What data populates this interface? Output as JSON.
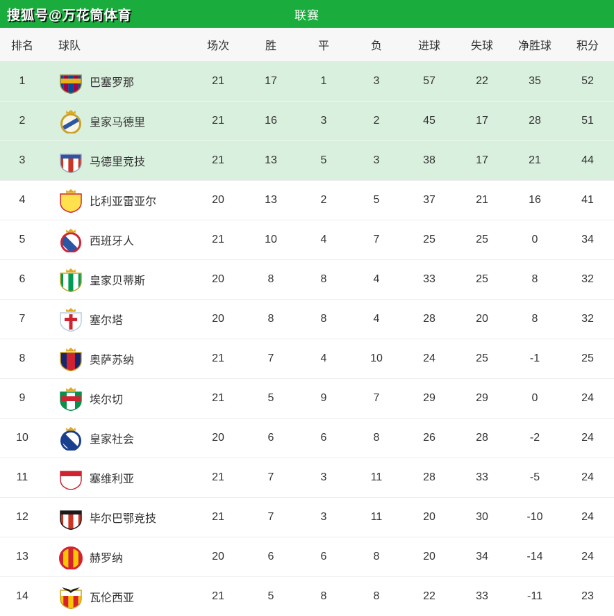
{
  "watermark": "搜狐号@万花筒体育",
  "header": {
    "title": "联赛"
  },
  "colors": {
    "topbar_green": "#1aac3d",
    "highlight_row_green": "#daf0de",
    "header_row_bg": "#f7f7f7",
    "text": "#333333"
  },
  "table": {
    "columns": [
      "排名",
      "球队",
      "场次",
      "胜",
      "平",
      "负",
      "进球",
      "失球",
      "净胜球",
      "积分"
    ],
    "rows": [
      {
        "rank": 1,
        "team": "巴塞罗那",
        "highlight": true,
        "played": 21,
        "win": 17,
        "draw": 1,
        "loss": 3,
        "gf": 57,
        "ga": 22,
        "gd": 35,
        "pts": 52,
        "logo": {
          "id": "barcelona",
          "shape": "shield",
          "stripes": [
            "#004d98",
            "#a50044",
            "#004d98",
            "#a50044",
            "#004d98"
          ],
          "band": {
            "color": "#e8b11a",
            "y": 14,
            "h": 7
          },
          "border": "#9c803e"
        }
      },
      {
        "rank": 2,
        "team": "皇家马德里",
        "highlight": true,
        "played": 21,
        "win": 16,
        "draw": 3,
        "loss": 2,
        "gf": 45,
        "ga": 17,
        "gd": 28,
        "pts": 51,
        "logo": {
          "id": "real-madrid",
          "shape": "circle",
          "fill": "#f8f4e8",
          "ring": "#c9a227",
          "sash": "#2a56a5",
          "crown": true
        }
      },
      {
        "rank": 3,
        "team": "马德里竞技",
        "highlight": true,
        "played": 21,
        "win": 13,
        "draw": 5,
        "loss": 3,
        "gf": 38,
        "ga": 17,
        "gd": 21,
        "pts": 44,
        "logo": {
          "id": "atletico-madrid",
          "shape": "shield",
          "stripes": [
            "#cb3524",
            "#ffffff",
            "#cb3524",
            "#ffffff",
            "#cb3524"
          ],
          "band": {
            "color": "#2a56a5",
            "y": 9,
            "h": 6
          },
          "border": "#9aa7bd"
        }
      },
      {
        "rank": 4,
        "team": "比利亚雷亚尔",
        "highlight": false,
        "played": 20,
        "win": 13,
        "draw": 2,
        "loss": 5,
        "gf": 37,
        "ga": 21,
        "gd": 16,
        "pts": 41,
        "logo": {
          "id": "villarreal",
          "shape": "shield",
          "fill": "#ffe14d",
          "border": "#cf2331",
          "crown": true
        }
      },
      {
        "rank": 5,
        "team": "西班牙人",
        "highlight": false,
        "played": 21,
        "win": 10,
        "draw": 4,
        "loss": 7,
        "gf": 25,
        "ga": 25,
        "gd": 0,
        "pts": 34,
        "logo": {
          "id": "espanyol",
          "shape": "circle",
          "stripes": [
            "#2a56a5",
            "#ffffff",
            "#2a56a5",
            "#ffffff"
          ],
          "diag": true,
          "ring": "#cf2331",
          "crown": true
        }
      },
      {
        "rank": 6,
        "team": "皇家贝蒂斯",
        "highlight": false,
        "played": 20,
        "win": 8,
        "draw": 8,
        "loss": 4,
        "gf": 33,
        "ga": 25,
        "gd": 8,
        "pts": 32,
        "logo": {
          "id": "real-betis",
          "shape": "shield",
          "stripes": [
            "#009c53",
            "#ffffff",
            "#009c53",
            "#ffffff",
            "#009c53"
          ],
          "border": "#c9a227",
          "crown": true
        }
      },
      {
        "rank": 7,
        "team": "塞尔塔",
        "highlight": false,
        "played": 20,
        "win": 8,
        "draw": 8,
        "loss": 4,
        "gf": 28,
        "ga": 20,
        "gd": 8,
        "pts": 32,
        "logo": {
          "id": "celta-vigo",
          "shape": "shield",
          "fill": "#ffffff",
          "cross": "#cf2331",
          "border": "#b9cbe0",
          "crown": true
        }
      },
      {
        "rank": 8,
        "team": "奥萨苏纳",
        "highlight": false,
        "played": 21,
        "win": 7,
        "draw": 4,
        "loss": 10,
        "gf": 24,
        "ga": 25,
        "gd": -1,
        "pts": 25,
        "logo": {
          "id": "osasuna",
          "shape": "shield",
          "stripes": [
            "#16256d",
            "#cf2331",
            "#16256d"
          ],
          "border": "#c9a227",
          "crown": true
        }
      },
      {
        "rank": 9,
        "team": "埃尔切",
        "highlight": false,
        "played": 21,
        "win": 5,
        "draw": 9,
        "loss": 7,
        "gf": 29,
        "ga": 29,
        "gd": 0,
        "pts": 24,
        "logo": {
          "id": "elche",
          "shape": "shield",
          "stripes": [
            "#0b8f4d",
            "#ffffff",
            "#0b8f4d"
          ],
          "band": {
            "color": "#cf2331",
            "y": 15,
            "h": 7
          },
          "border": "#0b8f4d",
          "crown": true
        }
      },
      {
        "rank": 10,
        "team": "皇家社会",
        "highlight": false,
        "played": 20,
        "win": 6,
        "draw": 6,
        "loss": 8,
        "gf": 26,
        "ga": 28,
        "gd": -2,
        "pts": 24,
        "logo": {
          "id": "real-sociedad",
          "shape": "circle",
          "stripes": [
            "#1b3f8f",
            "#ffffff",
            "#1b3f8f",
            "#ffffff"
          ],
          "diag": true,
          "ring": "#1b3f8f",
          "crown": true
        }
      },
      {
        "rank": 11,
        "team": "塞维利亚",
        "highlight": false,
        "played": 21,
        "win": 7,
        "draw": 3,
        "loss": 11,
        "gf": 28,
        "ga": 33,
        "gd": -5,
        "pts": 24,
        "logo": {
          "id": "sevilla",
          "shape": "shield",
          "fill": "#ffffff",
          "band": {
            "color": "#cf2331",
            "y": 9,
            "h": 7
          },
          "border": "#cf2331"
        }
      },
      {
        "rank": 12,
        "team": "毕尔巴鄂竞技",
        "highlight": false,
        "played": 21,
        "win": 7,
        "draw": 3,
        "loss": 11,
        "gf": 20,
        "ga": 30,
        "gd": -10,
        "pts": 24,
        "logo": {
          "id": "athletic-bilbao",
          "shape": "shield",
          "stripes": [
            "#cb3524",
            "#ffffff",
            "#cb3524",
            "#ffffff",
            "#cb3524"
          ],
          "band": {
            "color": "#1a1a1a",
            "y": 9,
            "h": 5
          },
          "border": "#1a1a1a"
        }
      },
      {
        "rank": 13,
        "team": "赫罗纳",
        "highlight": false,
        "played": 20,
        "win": 6,
        "draw": 6,
        "loss": 8,
        "gf": 20,
        "ga": 34,
        "gd": -14,
        "pts": 24,
        "logo": {
          "id": "girona",
          "shape": "circle",
          "stripes": [
            "#d6212e",
            "#f7c600",
            "#d6212e",
            "#f7c600",
            "#d6212e"
          ],
          "ring": "#d6212e"
        }
      },
      {
        "rank": 14,
        "team": "瓦伦西亚",
        "highlight": false,
        "played": 21,
        "win": 5,
        "draw": 8,
        "loss": 8,
        "gf": 22,
        "ga": 33,
        "gd": -11,
        "pts": 23,
        "logo": {
          "id": "valencia",
          "shape": "shield",
          "stripes": [
            "#f7c600",
            "#d6212e",
            "#f7c600",
            "#d6212e",
            "#f7c600"
          ],
          "band": {
            "color": "#ffffff",
            "y": 9,
            "h": 8
          },
          "border": "#c9a227",
          "bat": true
        }
      }
    ]
  }
}
